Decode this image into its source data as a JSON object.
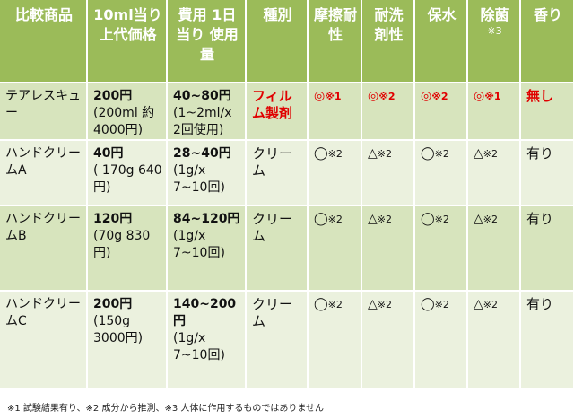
{
  "headers": [
    {
      "label": "比較商品"
    },
    {
      "label": "10ml当り上代価格"
    },
    {
      "label": "費用 1日当り 使用量"
    },
    {
      "label": "種別"
    },
    {
      "label": "摩擦耐性"
    },
    {
      "label": "耐洗剤性"
    },
    {
      "label": "保水"
    },
    {
      "label": "除菌",
      "note": "※3"
    },
    {
      "label": "香り"
    }
  ],
  "rows": [
    {
      "name": "テアレスキュー",
      "price": "200円",
      "price_note": "(200ml 約4000円)",
      "cost": "40~80円",
      "cost_note": "(1~2ml/x 2回使用)",
      "type": "フィルム製剤",
      "friction": "◎",
      "friction_note": "※1",
      "detergent": "◎",
      "detergent_note": "※2",
      "moisture": "◎",
      "moisture_note": "※2",
      "antibac": "◎",
      "antibac_note": "※1",
      "scent": "無し"
    },
    {
      "name": "ハンドクリームA",
      "price": "40円",
      "price_note": "( 170g 640円)",
      "cost": "28~40円",
      "cost_note": "(1g/x 7~10回)",
      "type": "クリーム",
      "friction": "◯",
      "friction_note": "※2",
      "detergent": "△",
      "detergent_note": "※2",
      "moisture": "◯",
      "moisture_note": "※2",
      "antibac": "△",
      "antibac_note": "※2",
      "scent": "有り"
    },
    {
      "name": "ハンドクリームB",
      "price": "120円",
      "price_note": "(70g 830円)",
      "cost": "84~120円",
      "cost_note": "(1g/x 7~10回)",
      "type": "クリーム",
      "friction": "◯",
      "friction_note": "※2",
      "detergent": "△",
      "detergent_note": "※2",
      "moisture": "◯",
      "moisture_note": "※2",
      "antibac": "△",
      "antibac_note": "※2",
      "scent": "有り"
    },
    {
      "name": "ハンドクリームC",
      "price": "200円",
      "price_note": "(150g 3000円)",
      "cost": "140~200円",
      "cost_note": "(1g/x 7~10回)",
      "type": "クリーム",
      "friction": "◯",
      "friction_note": "※2",
      "detergent": "△",
      "detergent_note": "※2",
      "moisture": "◯",
      "moisture_note": "※2",
      "antibac": "△",
      "antibac_note": "※2",
      "scent": "有り"
    }
  ],
  "footnote": "※1 試験結果有り、※2 成分から推測、※3 人体に作用するものではありません"
}
